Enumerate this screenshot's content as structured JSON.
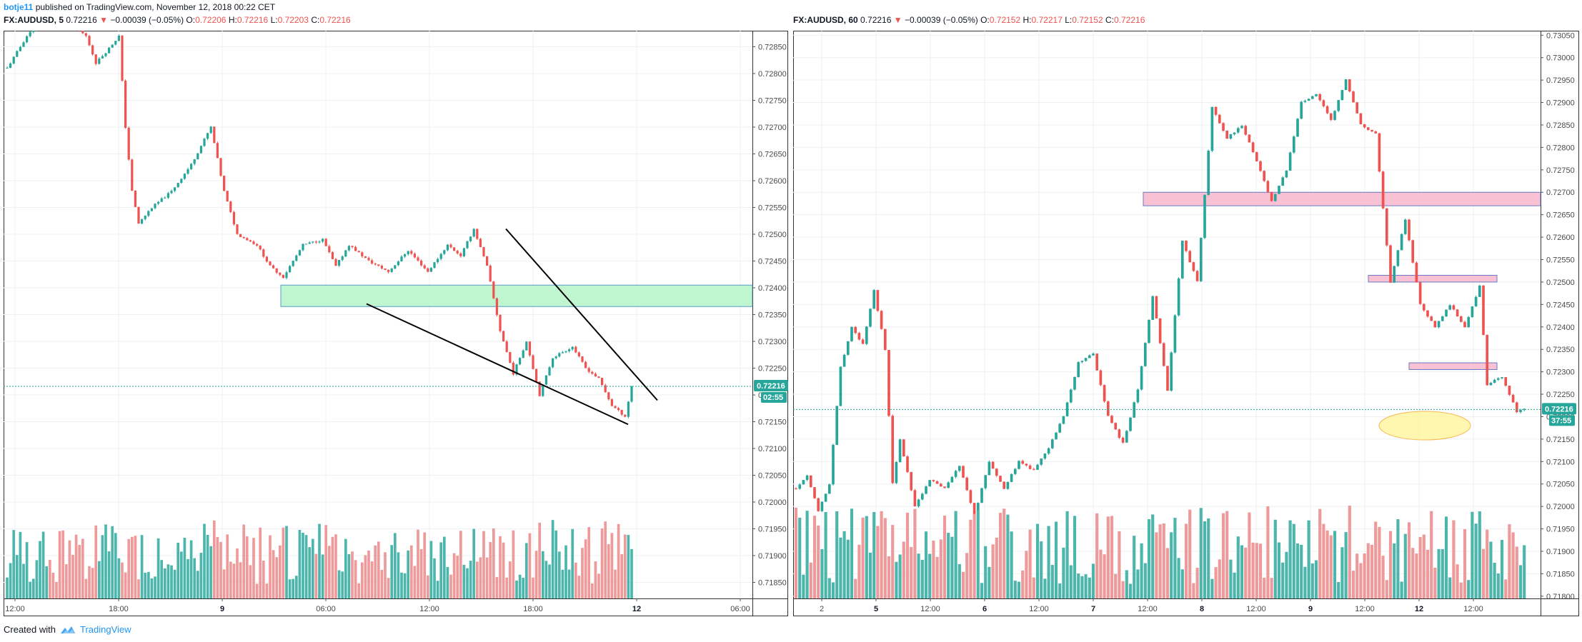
{
  "header": {
    "author": "botje11",
    "published_text": "published on TradingView.com, November 12, 2018 00:22 CET"
  },
  "left_legend": {
    "symbol": "FX:AUDUSD, 5",
    "last": "0.72216",
    "arrow": "▼",
    "change": "−0.00039 (−0.05%)",
    "o_label": "O:",
    "o": "0.72206",
    "h_label": "H:",
    "h": "0.72216",
    "l_label": "L:",
    "l": "0.72203",
    "c_label": "C:",
    "c": "0.72216"
  },
  "right_legend": {
    "symbol": "FX:AUDUSD, 60",
    "last": "0.72216",
    "arrow": "▼",
    "change": "−0.00039 (−0.05%)",
    "o_label": "O:",
    "o": "0.72152",
    "h_label": "H:",
    "h": "0.72217",
    "l_label": "L:",
    "l": "0.72152",
    "c_label": "C:",
    "c": "0.72216"
  },
  "footer": {
    "created_with": "Created with",
    "brand": "TradingView"
  },
  "colors": {
    "up": "#26a69a",
    "down": "#ef5350",
    "volume_up": "#4db6ac",
    "volume_down": "#ef9a9a",
    "green_zone": "#b9f6ca",
    "red_zone": "#f8bbd0",
    "yellow_zone": "#fff59d"
  },
  "chart_data": [
    {
      "type": "candlestick",
      "symbol": "FX:AUDUSD",
      "interval": "5",
      "y_ticks": [
        "0.72850",
        "0.72800",
        "0.72750",
        "0.72700",
        "0.72650",
        "0.72600",
        "0.72550",
        "0.72500",
        "0.72450",
        "0.72400",
        "0.72350",
        "0.72300",
        "0.72250",
        "0.72200",
        "0.72150",
        "0.72100",
        "0.72050",
        "0.72000",
        "0.71950",
        "0.71900",
        "0.71850"
      ],
      "ylim": [
        0.7182,
        0.7288
      ],
      "x_ticks": [
        "12:00",
        "18:00",
        "9",
        "06:00",
        "12:00",
        "18:00",
        "12",
        "06:00"
      ],
      "last_price_label": "0.72216",
      "countdown_label": "02:55",
      "last_price": 0.72216,
      "close_path": [
        [
          0,
          0.7281
        ],
        [
          6,
          0.7287
        ],
        [
          12,
          0.7291
        ],
        [
          18,
          0.729
        ],
        [
          24,
          0.7287
        ],
        [
          27,
          0.7282
        ],
        [
          30,
          0.7284
        ],
        [
          34,
          0.7287
        ],
        [
          36,
          0.727
        ],
        [
          38,
          0.7258
        ],
        [
          40,
          0.7252
        ],
        [
          44,
          0.7255
        ],
        [
          50,
          0.7258
        ],
        [
          56,
          0.7263
        ],
        [
          62,
          0.727
        ],
        [
          66,
          0.7258
        ],
        [
          70,
          0.725
        ],
        [
          76,
          0.7248
        ],
        [
          80,
          0.7244
        ],
        [
          84,
          0.7242
        ],
        [
          90,
          0.7248
        ],
        [
          96,
          0.7249
        ],
        [
          100,
          0.7244
        ],
        [
          104,
          0.7248
        ],
        [
          110,
          0.7245
        ],
        [
          116,
          0.7243
        ],
        [
          122,
          0.7247
        ],
        [
          128,
          0.7243
        ],
        [
          134,
          0.7248
        ],
        [
          138,
          0.7246
        ],
        [
          142,
          0.7251
        ],
        [
          146,
          0.7244
        ],
        [
          150,
          0.7232
        ],
        [
          154,
          0.7224
        ],
        [
          158,
          0.723
        ],
        [
          162,
          0.722
        ],
        [
          166,
          0.7227
        ],
        [
          172,
          0.7229
        ],
        [
          176,
          0.7225
        ],
        [
          180,
          0.7223
        ],
        [
          184,
          0.7218
        ],
        [
          188,
          0.7216
        ],
        [
          190,
          0.72216
        ]
      ],
      "pattern": {
        "upper_line": [
          [
            0.7251,
            0.7219
          ]
        ],
        "lower_line": [
          [
            0.7237,
            0.72145
          ]
        ]
      },
      "support_zone": [
        0.72365,
        0.72405
      ]
    },
    {
      "type": "candlestick",
      "symbol": "FX:AUDUSD",
      "interval": "60",
      "y_ticks": [
        "0.73050",
        "0.73000",
        "0.72950",
        "0.72900",
        "0.72850",
        "0.72800",
        "0.72750",
        "0.72700",
        "0.72650",
        "0.72600",
        "0.72550",
        "0.72500",
        "0.72450",
        "0.72400",
        "0.72350",
        "0.72300",
        "0.72250",
        "0.72200",
        "0.72150",
        "0.72100",
        "0.72050",
        "0.72000",
        "0.71950",
        "0.71900",
        "0.71850",
        "0.71800"
      ],
      "ylim": [
        0.71795,
        0.7306
      ],
      "x_ticks": [
        "2",
        "5",
        "12:00",
        "6",
        "12:00",
        "7",
        "12:00",
        "8",
        "12:00",
        "9",
        "12:00",
        "12",
        "12:00"
      ],
      "last_price_label": "0.72216",
      "countdown_label": "37:55",
      "last_price": 0.72216,
      "close_path": [
        [
          0,
          0.7204
        ],
        [
          3,
          0.7207
        ],
        [
          6,
          0.7199
        ],
        [
          9,
          0.7205
        ],
        [
          12,
          0.7231
        ],
        [
          15,
          0.724
        ],
        [
          18,
          0.7236
        ],
        [
          21,
          0.7248
        ],
        [
          24,
          0.7235
        ],
        [
          26,
          0.7205
        ],
        [
          28,
          0.7215
        ],
        [
          32,
          0.72
        ],
        [
          36,
          0.7206
        ],
        [
          40,
          0.7204
        ],
        [
          44,
          0.7209
        ],
        [
          48,
          0.7198
        ],
        [
          52,
          0.721
        ],
        [
          56,
          0.7204
        ],
        [
          60,
          0.721
        ],
        [
          64,
          0.7208
        ],
        [
          68,
          0.7213
        ],
        [
          72,
          0.722
        ],
        [
          76,
          0.7232
        ],
        [
          80,
          0.7234
        ],
        [
          84,
          0.722
        ],
        [
          88,
          0.7214
        ],
        [
          92,
          0.7226
        ],
        [
          96,
          0.7247
        ],
        [
          100,
          0.7226
        ],
        [
          104,
          0.7259
        ],
        [
          108,
          0.725
        ],
        [
          112,
          0.7289
        ],
        [
          116,
          0.7282
        ],
        [
          120,
          0.7285
        ],
        [
          124,
          0.7277
        ],
        [
          128,
          0.7268
        ],
        [
          132,
          0.7275
        ],
        [
          136,
          0.729
        ],
        [
          140,
          0.7292
        ],
        [
          144,
          0.7286
        ],
        [
          148,
          0.7295
        ],
        [
          152,
          0.7285
        ],
        [
          156,
          0.7283
        ],
        [
          160,
          0.725
        ],
        [
          164,
          0.7264
        ],
        [
          168,
          0.7245
        ],
        [
          172,
          0.724
        ],
        [
          176,
          0.7245
        ],
        [
          180,
          0.724
        ],
        [
          184,
          0.7249
        ],
        [
          186,
          0.7227
        ],
        [
          190,
          0.7229
        ],
        [
          194,
          0.7221
        ],
        [
          196,
          0.72216
        ]
      ],
      "zones": [
        {
          "kind": "red",
          "from": 0.7267,
          "to": 0.727
        },
        {
          "kind": "red",
          "from": 0.725,
          "to": 0.72515
        },
        {
          "kind": "red",
          "from": 0.72305,
          "to": 0.7232
        },
        {
          "kind": "yellow",
          "center": 0.7218
        }
      ]
    }
  ]
}
